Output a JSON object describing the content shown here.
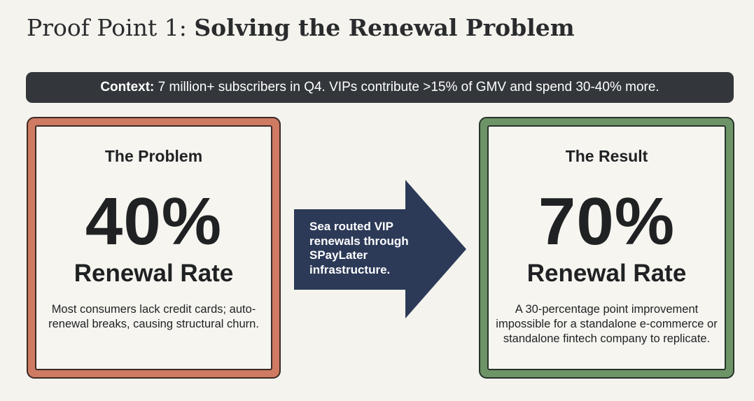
{
  "title": {
    "prefix": "Proof Point 1: ",
    "emphasis": "Solving the Renewal Problem"
  },
  "context": {
    "label": "Context:",
    "text": " 7 million+ subscribers in Q4. VIPs contribute >15% of GMV and spend 30-40% more."
  },
  "problem": {
    "heading": "The Problem",
    "value": "40%",
    "metric": "Renewal Rate",
    "description": "Most consumers lack credit cards; auto-renewal breaks, causing structural churn."
  },
  "arrow": {
    "text": "Sea routed VIP renewals through SPayLater infrastructure."
  },
  "result": {
    "heading": "The Result",
    "value": "70%",
    "metric": "Renewal Rate",
    "description": "A 30-percentage point improvement impossible for a standalone e-commerce or standalone fintech company to replicate."
  },
  "colors": {
    "background": "#f4f3ee",
    "context_bar": "#33373b",
    "problem_accent": "#cf7a62",
    "result_accent": "#6d9467",
    "arrow": "#2c3a58"
  }
}
